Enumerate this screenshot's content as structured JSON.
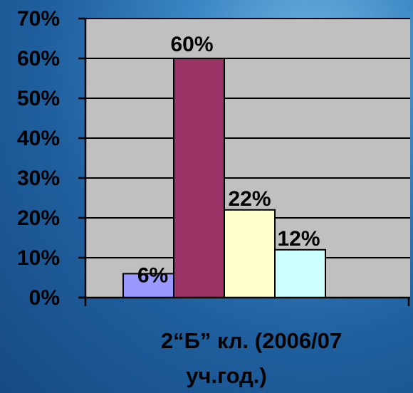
{
  "chart_data": {
    "type": "bar",
    "categories": [
      "2“Б” кл. (2006/07 уч.год.)"
    ],
    "category_label_lines": [
      "2“Б” кл. (2006/07",
      "уч.год.)"
    ],
    "series": [
      {
        "values": [
          6
        ],
        "color": "#9999ff"
      },
      {
        "values": [
          60
        ],
        "color": "#993366"
      },
      {
        "values": [
          22
        ],
        "color": "#ffffcc"
      },
      {
        "values": [
          12
        ],
        "color": "#ccffff"
      }
    ],
    "data_labels": [
      "6%",
      "60%",
      "22%",
      "12%"
    ],
    "y_ticks": [
      "0%",
      "10%",
      "20%",
      "30%",
      "40%",
      "50%",
      "60%",
      "70%"
    ],
    "ylim": [
      0,
      70
    ],
    "grid": true,
    "plot_background": "#c0c0c0"
  }
}
